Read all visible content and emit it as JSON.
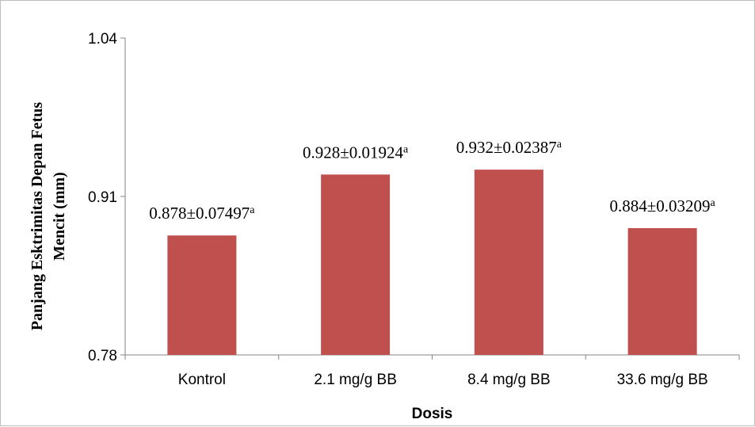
{
  "chart_data": {
    "type": "bar",
    "categories": [
      "Kontrol",
      "2.1 mg/g BB",
      "8.4 mg/g BB",
      "33.6 mg/g BB"
    ],
    "values": [
      0.878,
      0.928,
      0.932,
      0.884
    ],
    "data_labels": [
      {
        "text": "0.878±0.07497",
        "sup": "a"
      },
      {
        "text": "0.928±0.01924",
        "sup": "a"
      },
      {
        "text": "0.932±0.02387",
        "sup": "a"
      },
      {
        "text": "0.884±0.03209",
        "sup": "a"
      }
    ],
    "xlabel": "Dosis",
    "ylabel_lines": [
      "Panjang Esktrimitas Depan Fetus",
      "Mencit (mm)"
    ],
    "ylim": [
      0.78,
      1.04
    ],
    "yticks": [
      0.78,
      0.91,
      1.04
    ],
    "ytick_labels": [
      "0.78",
      "0.91",
      "1.04"
    ],
    "grid": false,
    "legend": "none",
    "bar_color": "#c0504d"
  }
}
